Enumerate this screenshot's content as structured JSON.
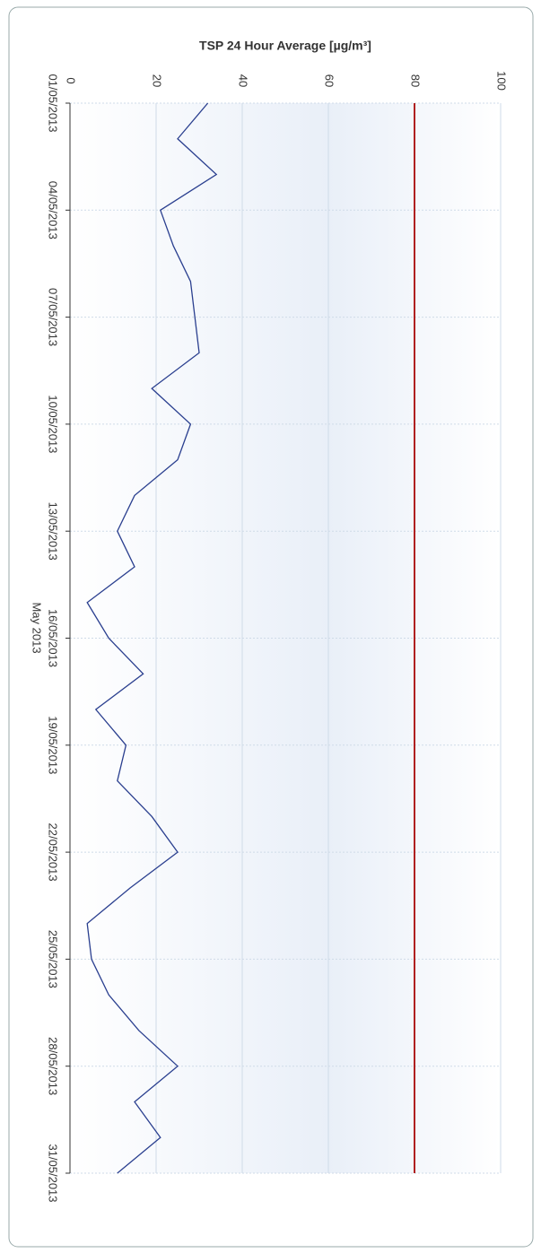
{
  "chart_data": {
    "type": "line",
    "title": "TSP 24 Hour Average [µg/m³]",
    "x_label": "May 2013",
    "x": [
      "01/05/2013",
      "02/05/2013",
      "03/05/2013",
      "04/05/2013",
      "05/05/2013",
      "06/05/2013",
      "07/05/2013",
      "08/05/2013",
      "09/05/2013",
      "10/05/2013",
      "11/05/2013",
      "12/05/2013",
      "13/05/2013",
      "14/05/2013",
      "15/05/2013",
      "16/05/2013",
      "17/05/2013",
      "18/05/2013",
      "19/05/2013",
      "20/05/2013",
      "21/05/2013",
      "22/05/2013",
      "23/05/2013",
      "24/05/2013",
      "25/05/2013",
      "26/05/2013",
      "27/05/2013",
      "28/05/2013",
      "29/05/2013",
      "30/05/2013",
      "31/05/2013"
    ],
    "xticks": [
      "01/05/2013",
      "04/05/2013",
      "07/05/2013",
      "10/05/2013",
      "13/05/2013",
      "16/05/2013",
      "19/05/2013",
      "22/05/2013",
      "25/05/2013",
      "28/05/2013",
      "31/05/2013"
    ],
    "series": [
      {
        "name": "TSP 24 Hour Average",
        "color": "#2a3f8f",
        "values": [
          32,
          25,
          34,
          21,
          24,
          28,
          29,
          30,
          19,
          28,
          25,
          15,
          11,
          15,
          4,
          9,
          17,
          6,
          13,
          11,
          19,
          25,
          14,
          4,
          5,
          9,
          16,
          25,
          15,
          21,
          11
        ]
      }
    ],
    "threshold": {
      "value": 80,
      "color": "#b02020"
    },
    "ylim": [
      0,
      100
    ],
    "yticks": [
      0,
      20,
      40,
      60,
      80,
      100
    ],
    "grid": true
  }
}
